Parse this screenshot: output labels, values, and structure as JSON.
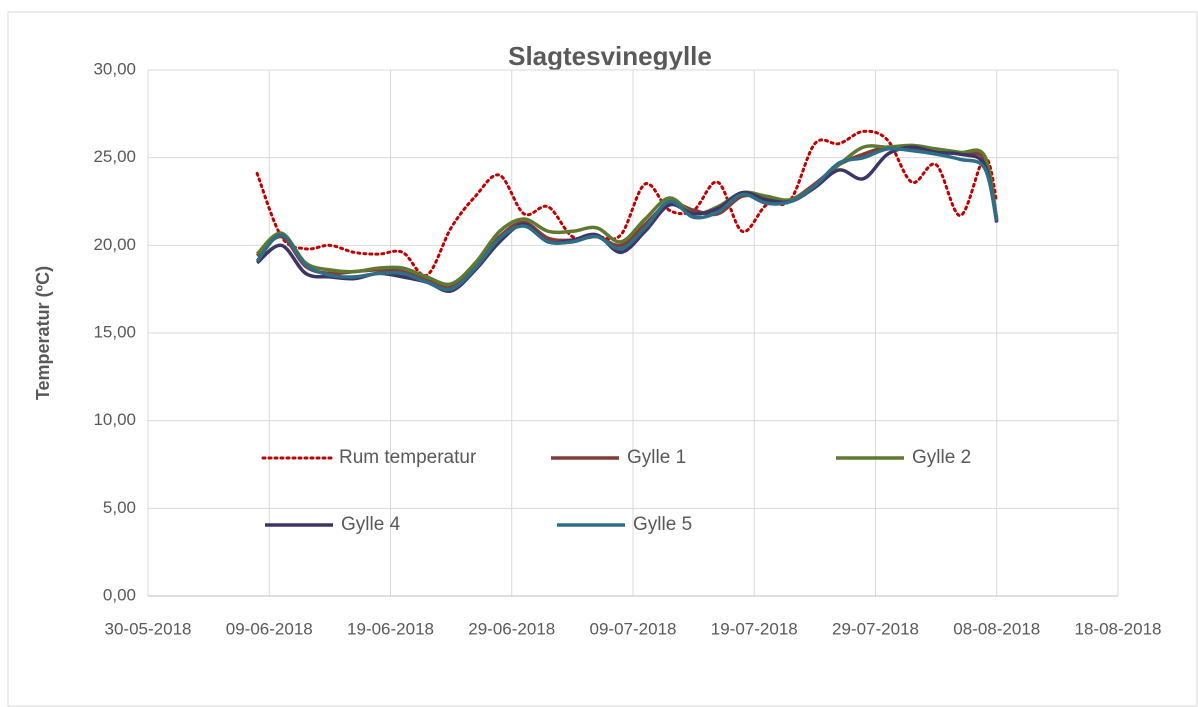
{
  "chart_data": {
    "type": "line",
    "title": "Slagtesvinegylle",
    "y_label": "Temperatur (ºC)",
    "x": [
      "08-06-2018",
      "10-06-2018",
      "12-06-2018",
      "14-06-2018",
      "16-06-2018",
      "18-06-2018",
      "20-06-2018",
      "22-06-2018",
      "24-06-2018",
      "26-06-2018",
      "28-06-2018",
      "30-06-2018",
      "02-07-2018",
      "04-07-2018",
      "06-07-2018",
      "08-07-2018",
      "10-07-2018",
      "12-07-2018",
      "14-07-2018",
      "16-07-2018",
      "18-07-2018",
      "20-07-2018",
      "22-07-2018",
      "24-07-2018",
      "26-07-2018",
      "28-07-2018",
      "30-07-2018",
      "01-08-2018",
      "03-08-2018",
      "05-08-2018",
      "07-08-2018",
      "08-08-2018"
    ],
    "series": [
      {
        "name": "Rum temperatur",
        "color": "#c00000",
        "dash": "dotted",
        "values": [
          24.1,
          20.5,
          19.8,
          20.0,
          19.6,
          19.5,
          19.6,
          18.3,
          21.0,
          22.8,
          24.0,
          21.8,
          22.2,
          20.5,
          20.5,
          20.6,
          23.5,
          22.0,
          22.0,
          23.6,
          20.8,
          22.3,
          22.6,
          25.8,
          25.8,
          26.5,
          26.0,
          23.6,
          24.6,
          21.7,
          25.0,
          22.5
        ]
      },
      {
        "name": "Gylle 1",
        "color": "#843c39",
        "values": [
          19.4,
          20.5,
          18.8,
          18.4,
          18.5,
          18.6,
          18.5,
          18.0,
          17.6,
          18.8,
          20.5,
          21.3,
          20.4,
          20.3,
          20.5,
          20.0,
          21.2,
          22.4,
          22.0,
          21.8,
          22.8,
          22.7,
          22.6,
          23.5,
          24.6,
          25.2,
          25.6,
          25.5,
          25.4,
          25.2,
          24.9,
          21.5
        ]
      },
      {
        "name": "Gylle 2",
        "color": "#5f7a30",
        "values": [
          19.5,
          20.7,
          19.0,
          18.6,
          18.5,
          18.7,
          18.7,
          18.2,
          17.8,
          19.0,
          20.8,
          21.5,
          20.8,
          20.8,
          21.0,
          20.2,
          21.5,
          22.7,
          21.8,
          22.2,
          23.0,
          22.8,
          22.6,
          23.4,
          24.6,
          25.6,
          25.6,
          25.7,
          25.5,
          25.3,
          25.1,
          21.4
        ]
      },
      {
        "name": "Gylle 4",
        "color": "#3f3565",
        "values": [
          19.0,
          20.0,
          18.4,
          18.2,
          18.1,
          18.4,
          18.2,
          17.9,
          17.4,
          18.6,
          20.2,
          21.2,
          20.2,
          20.3,
          20.6,
          19.6,
          20.8,
          22.3,
          21.8,
          22.1,
          23.0,
          22.6,
          22.5,
          23.3,
          24.3,
          23.8,
          25.2,
          25.6,
          25.3,
          25.2,
          24.6,
          21.3
        ]
      },
      {
        "name": "Gylle 5",
        "color": "#2e6e86",
        "values": [
          19.1,
          20.6,
          18.9,
          18.3,
          18.2,
          18.4,
          18.4,
          17.9,
          17.5,
          18.7,
          20.4,
          21.1,
          20.2,
          20.2,
          20.5,
          19.8,
          21.0,
          22.5,
          21.6,
          21.9,
          22.9,
          22.4,
          22.5,
          23.4,
          24.7,
          25.0,
          25.5,
          25.4,
          25.2,
          24.9,
          24.4,
          21.4
        ]
      }
    ],
    "xlim": [
      "30-05-2018",
      "18-08-2018"
    ],
    "xticks": [
      "30-05-2018",
      "09-06-2018",
      "19-06-2018",
      "29-06-2018",
      "09-07-2018",
      "19-07-2018",
      "29-07-2018",
      "08-08-2018",
      "18-08-2018"
    ],
    "ylim": [
      0,
      30
    ],
    "yticks": [
      {
        "value": 0,
        "label": "0,00"
      },
      {
        "value": 5,
        "label": "5,00"
      },
      {
        "value": 10,
        "label": "10,00"
      },
      {
        "value": 15,
        "label": "15,00"
      },
      {
        "value": 20,
        "label": "20,00"
      },
      {
        "value": 25,
        "label": "25,00"
      },
      {
        "value": 30,
        "label": "30,00"
      }
    ],
    "grid": true
  }
}
